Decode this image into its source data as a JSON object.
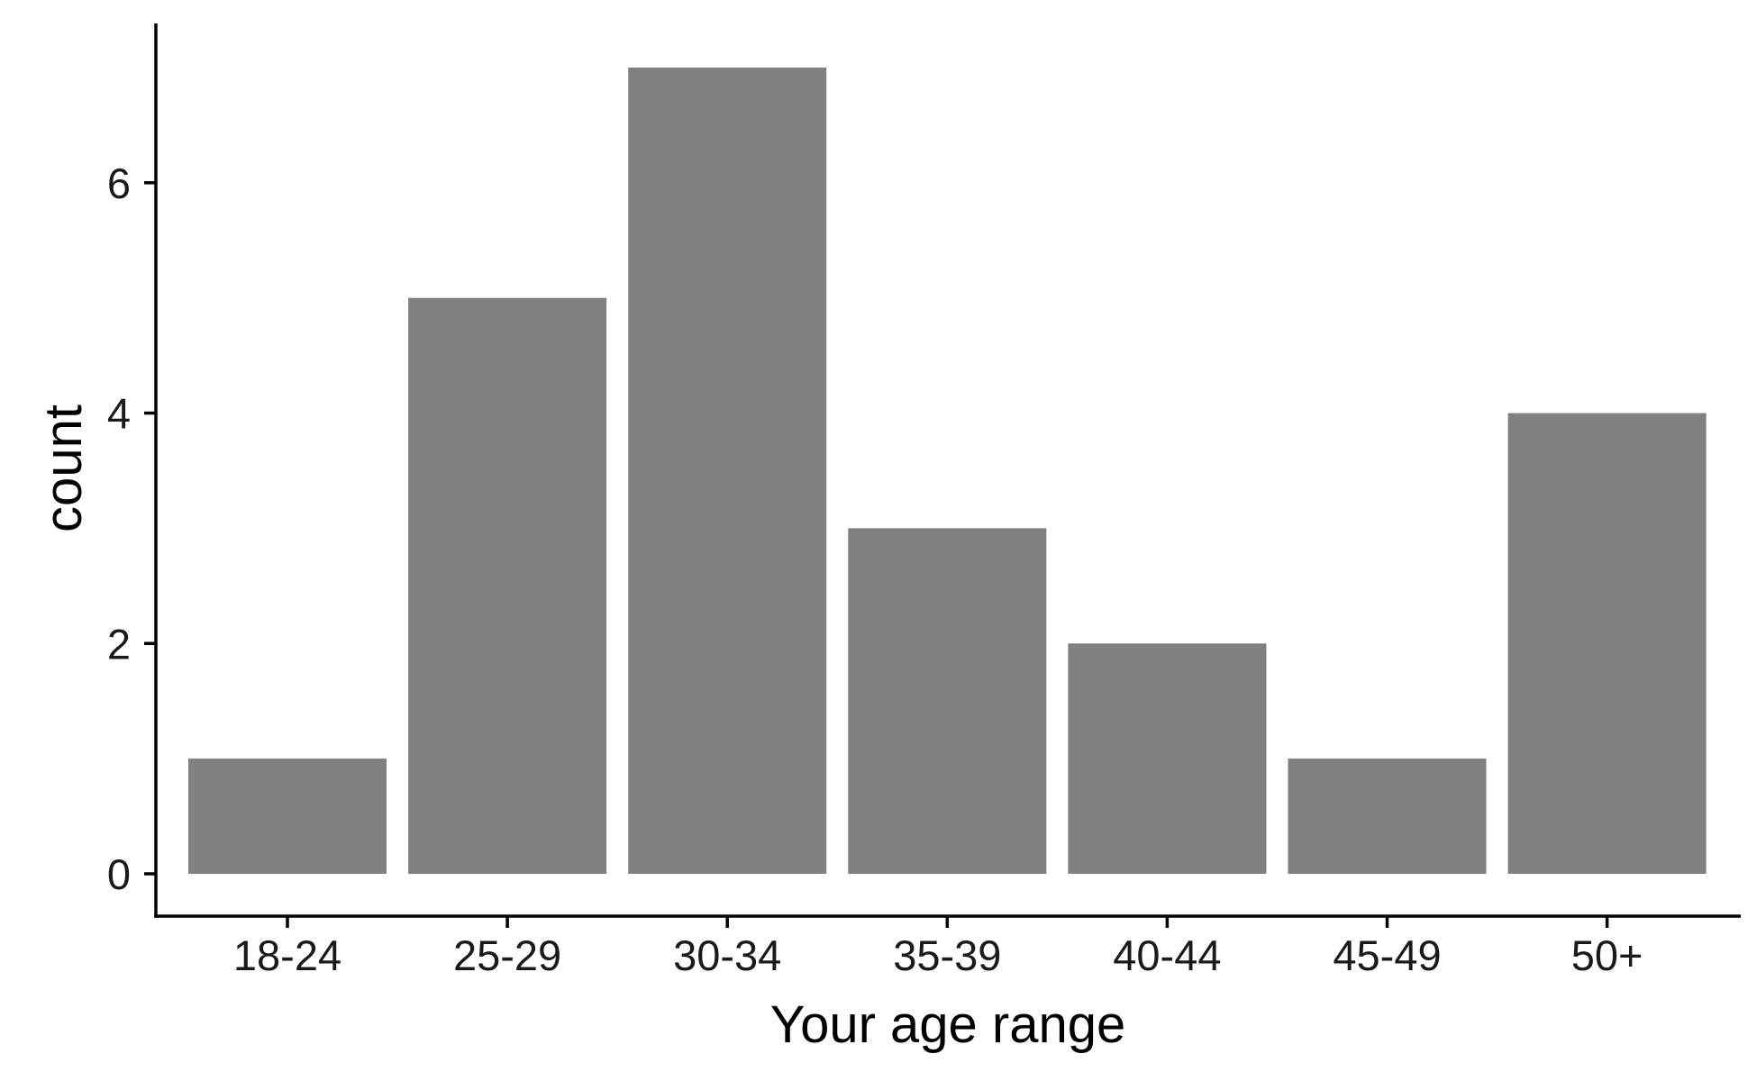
{
  "chart_data": {
    "type": "bar",
    "title": "",
    "xlabel": "Your age range",
    "ylabel": "count",
    "categories": [
      "18-24",
      "25-29",
      "30-34",
      "35-39",
      "40-44",
      "45-49",
      "50+"
    ],
    "values": [
      1,
      5,
      7,
      3,
      2,
      1,
      4
    ],
    "ylim": [
      0,
      7.35
    ],
    "yticks": [
      0,
      2,
      4,
      6
    ],
    "grid": false,
    "legend": "none",
    "bar_color": "#808080",
    "axis_color": "#000000"
  }
}
